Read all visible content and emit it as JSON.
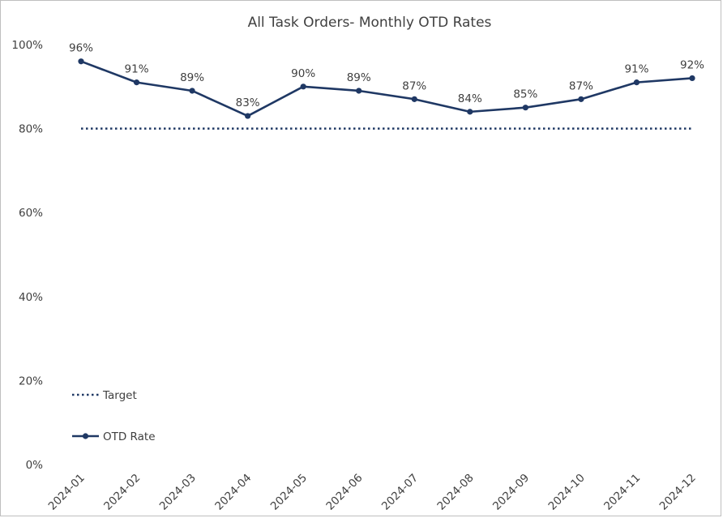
{
  "chart_data": {
    "type": "line",
    "title": "All Task Orders- Monthly OTD Rates",
    "xlabel": "",
    "ylabel": "",
    "categories": [
      "2024-01",
      "2024-02",
      "2024-03",
      "2024-04",
      "2024-05",
      "2024-06",
      "2024-07",
      "2024-08",
      "2024-09",
      "2024-10",
      "2024-11",
      "2024-12"
    ],
    "series": [
      {
        "name": "OTD Rate",
        "values": [
          96,
          91,
          89,
          83,
          90,
          89,
          87,
          84,
          85,
          87,
          91,
          92
        ],
        "data_labels": [
          "96%",
          "91%",
          "89%",
          "83%",
          "90%",
          "89%",
          "87%",
          "84%",
          "85%",
          "87%",
          "91%",
          "92%"
        ],
        "color": "#1f3864",
        "style": "solid-with-markers"
      },
      {
        "name": "Target",
        "values": [
          80,
          80,
          80,
          80,
          80,
          80,
          80,
          80,
          80,
          80,
          80,
          80
        ],
        "color": "#1f3864",
        "style": "dotted"
      }
    ],
    "y_ticks": [
      {
        "value": 0,
        "label": "0%"
      },
      {
        "value": 20,
        "label": "20%"
      },
      {
        "value": 40,
        "label": "40%"
      },
      {
        "value": 60,
        "label": "60%"
      },
      {
        "value": 80,
        "label": "80%"
      },
      {
        "value": 100,
        "label": "100%"
      }
    ],
    "ylim": [
      0,
      100
    ],
    "grid": false,
    "legend_position": "bottom-left"
  }
}
